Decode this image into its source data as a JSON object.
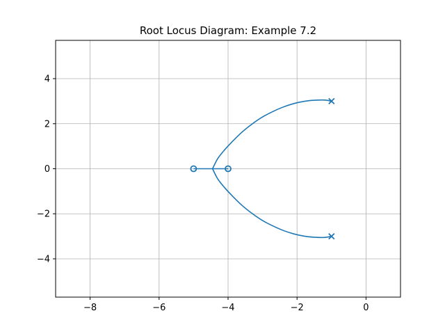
{
  "chart_data": {
    "type": "line",
    "title": "Root Locus Diagram: Example 7.2",
    "xlabel": "",
    "ylabel": "",
    "xlim": [
      -9,
      1
    ],
    "ylim": [
      -5.7,
      5.7
    ],
    "grid": true,
    "xticks": [
      {
        "value": -8,
        "label": "−8"
      },
      {
        "value": -6,
        "label": "−6"
      },
      {
        "value": -4,
        "label": "−4"
      },
      {
        "value": -2,
        "label": "−2"
      },
      {
        "value": 0,
        "label": "0"
      }
    ],
    "yticks": [
      {
        "value": -4,
        "label": "−4"
      },
      {
        "value": -2,
        "label": "−2"
      },
      {
        "value": 0,
        "label": "0"
      },
      {
        "value": 2,
        "label": "2"
      },
      {
        "value": 4,
        "label": "4"
      }
    ],
    "series": [
      {
        "color": "#1f77b4",
        "points": [
          [
            -1.0,
            3.0
          ],
          [
            -1.2,
            3.05
          ],
          [
            -1.5,
            3.04
          ],
          [
            -1.8,
            2.99
          ],
          [
            -2.1,
            2.89
          ],
          [
            -2.4,
            2.74
          ],
          [
            -2.7,
            2.54
          ],
          [
            -3.0,
            2.3
          ],
          [
            -3.3,
            1.99
          ],
          [
            -3.6,
            1.62
          ],
          [
            -3.9,
            1.17
          ],
          [
            -4.1,
            0.84
          ],
          [
            -4.3,
            0.45
          ],
          [
            -4.45,
            0.0
          ]
        ]
      },
      {
        "color": "#1f77b4",
        "points": [
          [
            -1.0,
            -3.0
          ],
          [
            -1.2,
            -3.05
          ],
          [
            -1.5,
            -3.04
          ],
          [
            -1.8,
            -2.99
          ],
          [
            -2.1,
            -2.89
          ],
          [
            -2.4,
            -2.74
          ],
          [
            -2.7,
            -2.54
          ],
          [
            -3.0,
            -2.3
          ],
          [
            -3.3,
            -1.99
          ],
          [
            -3.6,
            -1.62
          ],
          [
            -3.9,
            -1.17
          ],
          [
            -4.1,
            -0.84
          ],
          [
            -4.3,
            -0.45
          ],
          [
            -4.45,
            0.0
          ]
        ]
      },
      {
        "color": "#1f77b4",
        "points": [
          [
            -5.0,
            0.0
          ],
          [
            -4.0,
            0.0
          ]
        ]
      }
    ],
    "poles": [
      [
        -1.0,
        3.0
      ],
      [
        -1.0,
        -3.0
      ]
    ],
    "zeros": [
      [
        -5.0,
        0.0
      ],
      [
        -4.0,
        0.0
      ]
    ],
    "marker_color": "#1f77b4"
  }
}
